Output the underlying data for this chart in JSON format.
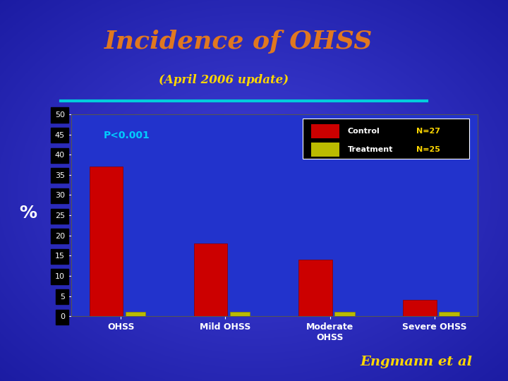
{
  "title": "Incidence of OHSS",
  "subtitle": "(April 2006 update)",
  "title_color": "#E07820",
  "subtitle_color": "#FFD700",
  "bg_color": "#2222BB",
  "plot_bg_color": "#2233CC",
  "categories": [
    "OHSS",
    "Mild OHSS",
    "Moderate\nOHSS",
    "Severe OHSS"
  ],
  "control_values": [
    37,
    18,
    14,
    4
  ],
  "treatment_values": [
    1,
    1,
    1,
    1
  ],
  "control_color": "#CC0000",
  "treatment_color": "#BBBB00",
  "ylabel": "%",
  "ylim": [
    0,
    50
  ],
  "yticks": [
    0,
    5,
    10,
    15,
    20,
    25,
    30,
    35,
    40,
    45,
    50
  ],
  "legend_control_label": "Control",
  "legend_treatment_label": "Treatment",
  "legend_n_control": "N=27",
  "legend_n_treatment": "N=25",
  "p_value_text": "P<0.001",
  "p_value_color": "#00CCFF",
  "annotation": "Engmann et al",
  "annotation_color": "#FFD700",
  "cyan_line_color": "#00CCDD",
  "tick_label_color": "#ffffff",
  "xlabel_color": "#ffffff"
}
